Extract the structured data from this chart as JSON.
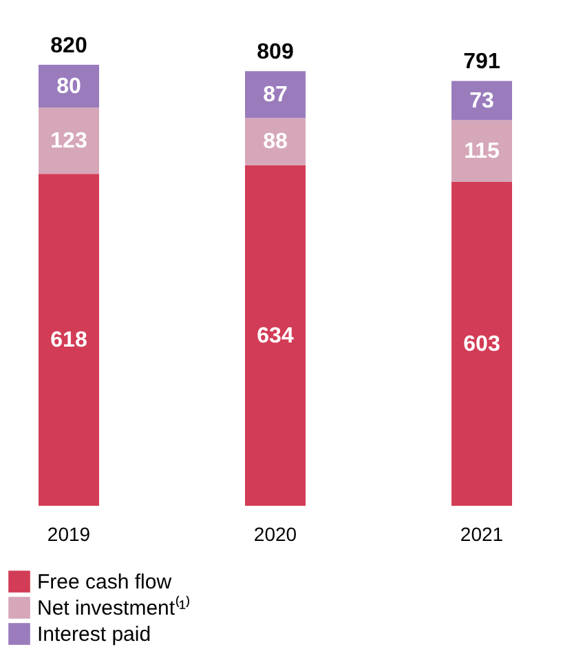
{
  "chart_data": {
    "type": "bar",
    "stacked": true,
    "data_labels": true,
    "legend": "bottom",
    "tick_labels": "x",
    "categories": [
      "2019",
      "2020",
      "2021"
    ],
    "series": [
      {
        "name": "Free cash flow",
        "color": "#d23c56",
        "values": [
          618,
          634,
          603
        ]
      },
      {
        "name": "Net investment⁽¹⁾",
        "color": "#d6a7b9",
        "values": [
          123,
          88,
          115
        ]
      },
      {
        "name": "Interest paid",
        "color": "#9a7cbd",
        "values": [
          80,
          87,
          73
        ]
      }
    ],
    "totals": [
      "820",
      "809",
      "791"
    ]
  }
}
